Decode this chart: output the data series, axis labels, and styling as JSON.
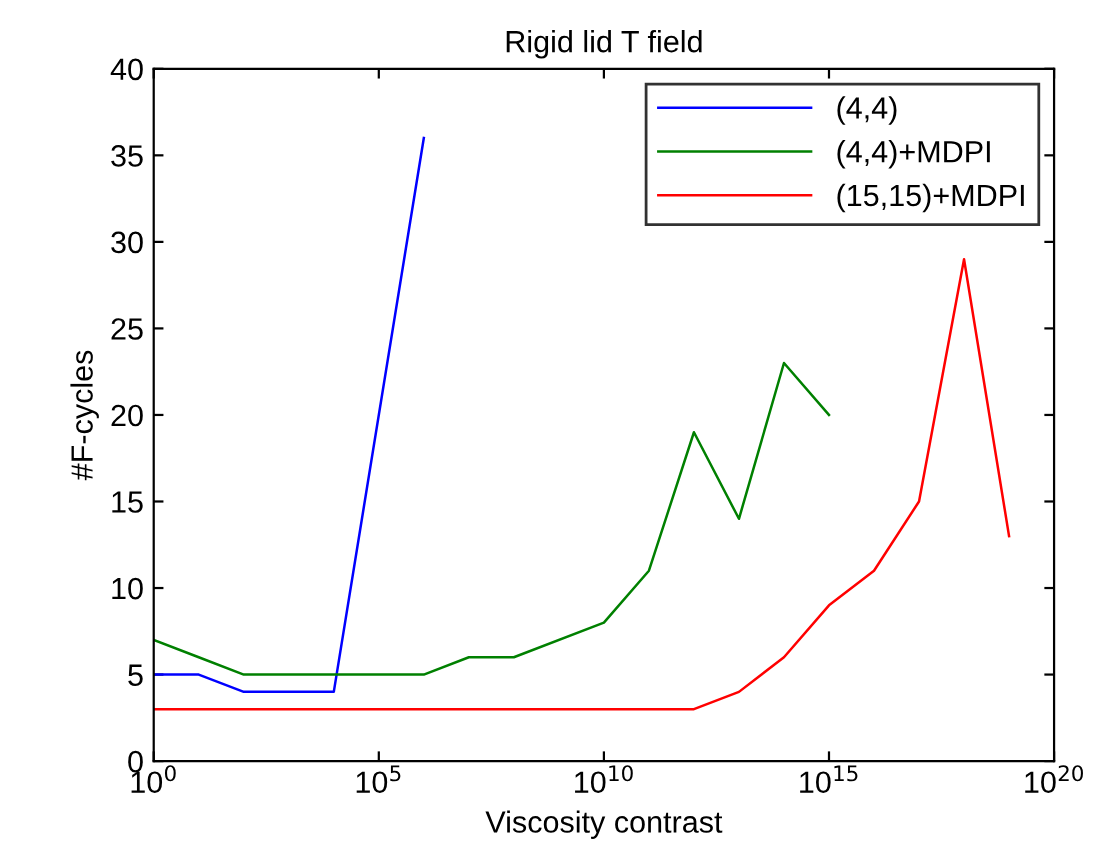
{
  "chart_data": {
    "type": "line",
    "title": "Rigid lid T field",
    "xlabel": "Viscosity contrast",
    "ylabel": "#F-cycles",
    "log": "x",
    "xlim": [
      1,
      1e+20
    ],
    "xticks": [
      {
        "value": 1,
        "label": "10$^{0}$"
      },
      {
        "value": 100000,
        "label": "10$^{5}$"
      },
      {
        "value": 10000000000.0,
        "label": "10$^{10}$"
      },
      {
        "value": 1000000000000000.0,
        "label": "10$^{15}$"
      },
      {
        "value": 1e+20,
        "label": "10$^{20}$"
      }
    ],
    "ylim": [
      0,
      40
    ],
    "yticks": [
      0,
      5,
      10,
      15,
      20,
      25,
      30,
      35,
      40
    ],
    "grid": false,
    "legend": "top right",
    "series": [
      {
        "name": "(4,4)",
        "color": "#0000ff",
        "x": [
          1,
          10,
          100,
          1000,
          10000,
          1000000
        ],
        "values": [
          5,
          5,
          4,
          4,
          4,
          36
        ]
      },
      {
        "name": "(4,4)+MDPI",
        "color": "#008000",
        "x": [
          1,
          10,
          100,
          1000,
          10000,
          100000,
          1000000,
          10000000,
          100000000,
          10000000000.0,
          100000000000.0,
          1000000000000.0,
          10000000000000.0,
          100000000000000.0,
          1000000000000000.0
        ],
        "values": [
          7,
          6,
          5,
          5,
          5,
          5,
          5,
          6,
          6,
          8,
          11,
          19,
          14,
          23,
          20
        ]
      },
      {
        "name": "(15,15)+MDPI",
        "color": "#ff0000",
        "x": [
          1,
          1000000000000.0,
          10000000000000.0,
          100000000000000.0,
          1000000000000000.0,
          1e+16,
          1e+17,
          1e+18,
          1e+19
        ],
        "values": [
          3,
          3,
          4,
          6,
          9,
          11,
          15,
          29,
          13
        ]
      }
    ]
  }
}
